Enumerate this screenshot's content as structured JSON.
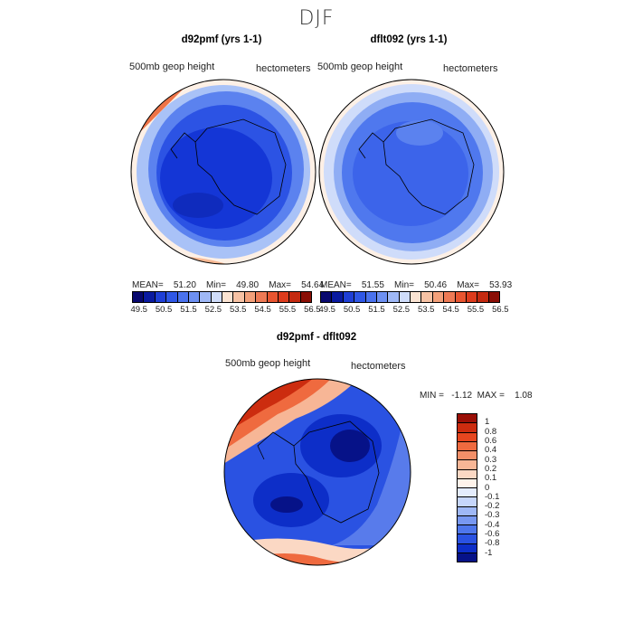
{
  "title": "DJF",
  "panels": [
    {
      "title": "d92pmf (yrs 1-1)",
      "subtitle_left": "500mb geop height",
      "subtitle_right": "hectometers",
      "stats": {
        "mean_label": "MEAN=",
        "mean": "51.20",
        "min_label": "Min=",
        "min": "49.80",
        "max_label": "Max=",
        "max": "54.64"
      }
    },
    {
      "title": "dflt092 (yrs 1-1)",
      "subtitle_left": "500mb geop height",
      "subtitle_right": "hectometers",
      "stats": {
        "mean_label": "MEAN=",
        "mean": "51.55",
        "min_label": "Min=",
        "min": "50.46",
        "max_label": "Max=",
        "max": "53.93"
      }
    },
    {
      "title": "d92pmf - dflt092",
      "subtitle_left": "500mb geop height",
      "subtitle_right": "hectometers",
      "stats": {
        "min_label": "MIN =",
        "min": "-1.12",
        "max_label": "MAX =",
        "max": "1.08"
      }
    }
  ],
  "colorbar_top": {
    "labels": [
      "49.5",
      "50.5",
      "51.5",
      "52.5",
      "53.5",
      "54.5",
      "55.5",
      "56.5"
    ],
    "colors": [
      "#08086e",
      "#0a1aa0",
      "#1f3fd6",
      "#2f57e6",
      "#4a72ee",
      "#6d90f2",
      "#9fb8f6",
      "#cfdcfa",
      "#fbe3d2",
      "#f7c2a4",
      "#f3a07a",
      "#ee7a55",
      "#e85530",
      "#dd3b1c",
      "#c42a10",
      "#8a0e05"
    ]
  },
  "colorbar_diff": {
    "labels": [
      "1",
      "0.8",
      "0.6",
      "0.4",
      "0.3",
      "0.2",
      "0.1",
      "0",
      "-0.1",
      "-0.2",
      "-0.3",
      "-0.4",
      "-0.6",
      "-0.8",
      "-1"
    ],
    "colors": [
      "#9a0f06",
      "#cc2c0f",
      "#e6461f",
      "#ef6a3f",
      "#f38f68",
      "#f7b696",
      "#fbd8c4",
      "#fff3ea",
      "#e4ecfd",
      "#c6d6fb",
      "#9fb8f6",
      "#7898f1",
      "#4e76ec",
      "#2a52e2",
      "#0d2ec8",
      "#061288"
    ]
  },
  "map_colors": {
    "deep_blue": "#1436d6",
    "mid_blue": "#2c53e4",
    "light_blue": "#5b82ef",
    "pale_blue": "#a9c2f7",
    "cream": "#fdf0e6",
    "peach": "#f6b893",
    "orange": "#ee7448",
    "red": "#d9401c",
    "dark_red": "#a31406",
    "navy": "#0a1894"
  }
}
